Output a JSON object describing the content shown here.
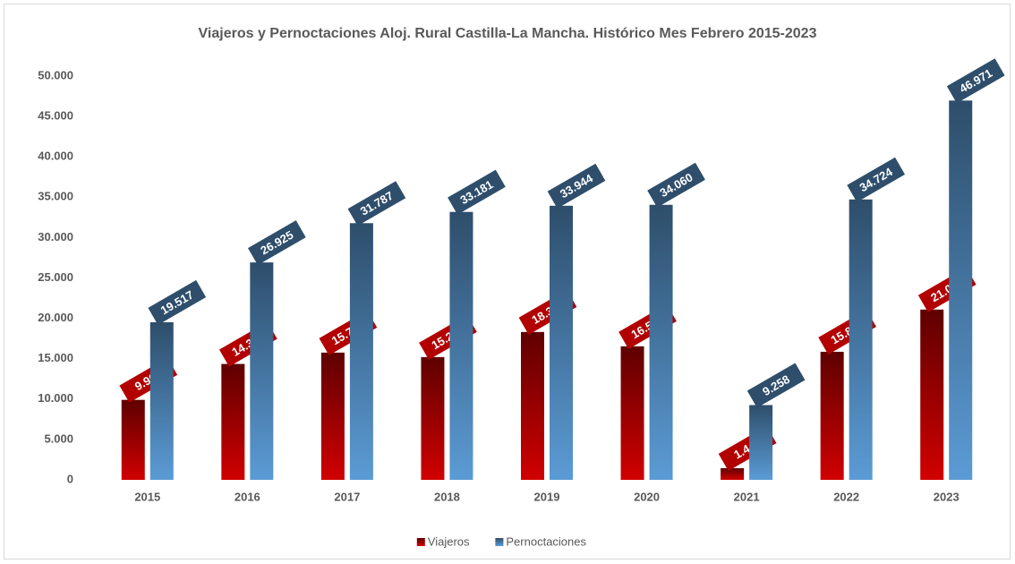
{
  "chart_data": {
    "type": "bar",
    "title": "Viajeros y Pernoctaciones Aloj. Rural Castilla-La Mancha. Histórico Mes Febrero 2015-2023",
    "categories": [
      "2015",
      "2016",
      "2017",
      "2018",
      "2019",
      "2020",
      "2021",
      "2022",
      "2023"
    ],
    "series": [
      {
        "name": "Viajeros",
        "color": "#d10000",
        "values": [
          9904,
          14354,
          15758,
          15203,
          18311,
          16538,
          1446,
          15859,
          21085
        ],
        "value_labels": [
          "9.904",
          "14.354",
          "15.758",
          "15.203",
          "18.311",
          "16.538",
          "1.446",
          "15.859",
          "21.085"
        ]
      },
      {
        "name": "Pernoctaciones",
        "color": "#5b9bd5",
        "values": [
          19517,
          26925,
          31787,
          33181,
          33944,
          34060,
          9258,
          34724,
          46971
        ],
        "value_labels": [
          "19.517",
          "26.925",
          "31.787",
          "33.181",
          "33.944",
          "34.060",
          "9.258",
          "34.724",
          "46.971"
        ]
      }
    ],
    "ylim": [
      0,
      50000
    ],
    "yticks": [
      0,
      {
        "value": 5000,
        "label": "5.000"
      },
      {
        "value": 10000,
        "label": "10.000"
      },
      {
        "value": 15000,
        "label": "15.000"
      },
      {
        "value": 20000,
        "label": "20.000"
      },
      {
        "value": 25000,
        "label": "25.000"
      },
      {
        "value": 30000,
        "label": "30.000"
      },
      {
        "value": 35000,
        "label": "35.000"
      },
      {
        "value": 40000,
        "label": "40.000"
      },
      {
        "value": 45000,
        "label": "45.000"
      },
      {
        "value": 50000,
        "label": "50.000"
      }
    ],
    "grid": false,
    "legend": "bottom"
  }
}
